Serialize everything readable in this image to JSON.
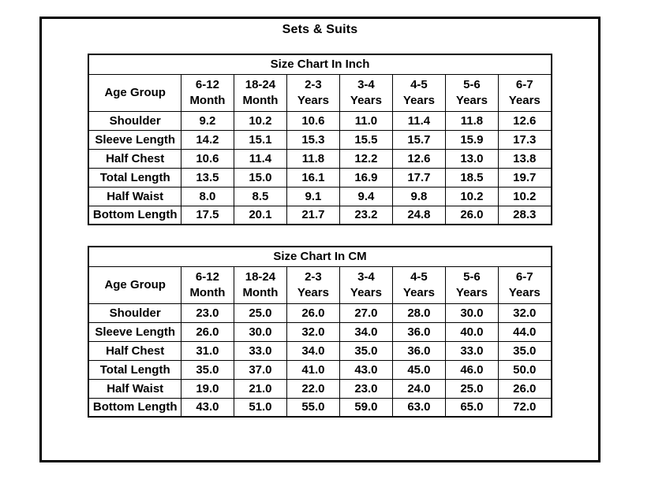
{
  "page": {
    "title": "Sets & Suits",
    "background_color": "#ffffff",
    "border_color": "#000000",
    "text_color": "#000000"
  },
  "tables": [
    {
      "title": "Size Chart In Inch",
      "corner_label": "Age Group",
      "columns": [
        {
          "line1": "6-12",
          "line2": "Month"
        },
        {
          "line1": "18-24",
          "line2": "Month"
        },
        {
          "line1": "2-3",
          "line2": "Years"
        },
        {
          "line1": "3-4",
          "line2": "Years"
        },
        {
          "line1": "4-5",
          "line2": "Years"
        },
        {
          "line1": "5-6",
          "line2": "Years"
        },
        {
          "line1": "6-7",
          "line2": "Years"
        }
      ],
      "rows": [
        {
          "label": "Shoulder",
          "values": [
            "9.2",
            "10.2",
            "10.6",
            "11.0",
            "11.4",
            "11.8",
            "12.6"
          ]
        },
        {
          "label": "Sleeve Length",
          "values": [
            "14.2",
            "15.1",
            "15.3",
            "15.5",
            "15.7",
            "15.9",
            "17.3"
          ]
        },
        {
          "label": "Half Chest",
          "values": [
            "10.6",
            "11.4",
            "11.8",
            "12.2",
            "12.6",
            "13.0",
            "13.8"
          ]
        },
        {
          "label": "Total Length",
          "values": [
            "13.5",
            "15.0",
            "16.1",
            "16.9",
            "17.7",
            "18.5",
            "19.7"
          ]
        },
        {
          "label": "Half Waist",
          "values": [
            "8.0",
            "8.5",
            "9.1",
            "9.4",
            "9.8",
            "10.2",
            "10.2"
          ]
        },
        {
          "label": "Bottom Length",
          "values": [
            "17.5",
            "20.1",
            "21.7",
            "23.2",
            "24.8",
            "26.0",
            "28.3"
          ]
        }
      ]
    },
    {
      "title": "Size Chart In CM",
      "corner_label": "Age Group",
      "columns": [
        {
          "line1": "6-12",
          "line2": "Month"
        },
        {
          "line1": "18-24",
          "line2": "Month"
        },
        {
          "line1": "2-3",
          "line2": "Years"
        },
        {
          "line1": "3-4",
          "line2": "Years"
        },
        {
          "line1": "4-5",
          "line2": "Years"
        },
        {
          "line1": "5-6",
          "line2": "Years"
        },
        {
          "line1": "6-7",
          "line2": "Years"
        }
      ],
      "rows": [
        {
          "label": "Shoulder",
          "values": [
            "23.0",
            "25.0",
            "26.0",
            "27.0",
            "28.0",
            "30.0",
            "32.0"
          ]
        },
        {
          "label": "Sleeve Length",
          "values": [
            "26.0",
            "30.0",
            "32.0",
            "34.0",
            "36.0",
            "40.0",
            "44.0"
          ]
        },
        {
          "label": "Half Chest",
          "values": [
            "31.0",
            "33.0",
            "34.0",
            "35.0",
            "36.0",
            "33.0",
            "35.0"
          ]
        },
        {
          "label": "Total Length",
          "values": [
            "35.0",
            "37.0",
            "41.0",
            "43.0",
            "45.0",
            "46.0",
            "50.0"
          ]
        },
        {
          "label": "Half Waist",
          "values": [
            "19.0",
            "21.0",
            "22.0",
            "23.0",
            "24.0",
            "25.0",
            "26.0"
          ]
        },
        {
          "label": "Bottom Length",
          "values": [
            "43.0",
            "51.0",
            "55.0",
            "59.0",
            "63.0",
            "65.0",
            "72.0"
          ]
        }
      ]
    }
  ]
}
